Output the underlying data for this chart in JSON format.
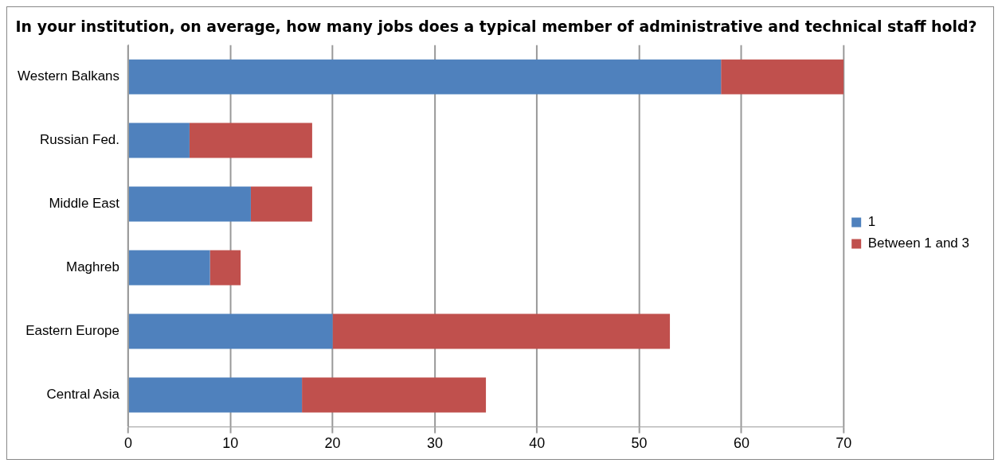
{
  "chart_data": {
    "type": "bar",
    "orientation": "horizontal",
    "stacked": true,
    "title": "In your institution, on average, how many jobs does a typical member of administrative and technical staff hold?",
    "categories": [
      "Western Balkans",
      "Russian Fed.",
      "Middle East",
      "Maghreb",
      "Eastern Europe",
      "Central Asia"
    ],
    "series": [
      {
        "name": "1",
        "color": "#4f81bd",
        "values": [
          58,
          6,
          12,
          8,
          20,
          17
        ]
      },
      {
        "name": "Between 1 and 3",
        "color": "#c0504d",
        "values": [
          12,
          12,
          6,
          3,
          33,
          18
        ]
      }
    ],
    "xlim": [
      0,
      70
    ],
    "xticks": [
      0,
      10,
      20,
      30,
      40,
      50,
      60,
      70
    ],
    "grid": "x",
    "legend": "right"
  }
}
